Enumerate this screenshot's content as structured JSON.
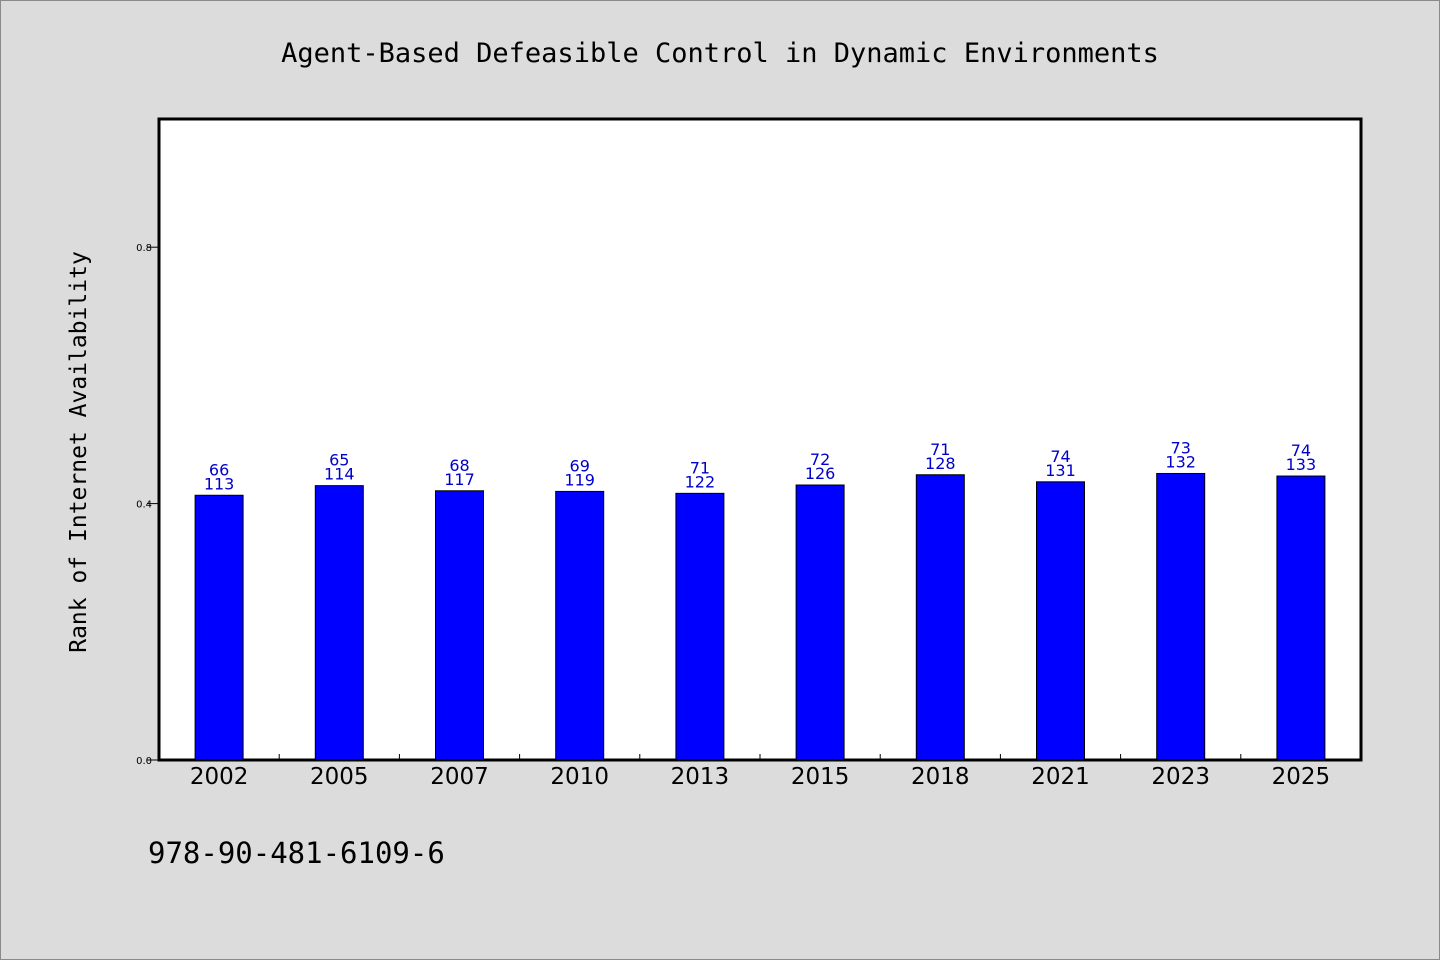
{
  "chart_data": {
    "type": "bar",
    "title": "Agent-Based Defeasible Control in Dynamic Environments",
    "xlabel": "",
    "ylabel": "Rank of Internet Availability",
    "categories": [
      "2002",
      "2005",
      "2007",
      "2010",
      "2013",
      "2015",
      "2018",
      "2021",
      "2023",
      "2025"
    ],
    "values": [
      0.413,
      0.428,
      0.42,
      0.419,
      0.416,
      0.429,
      0.445,
      0.434,
      0.447,
      0.443
    ],
    "bar_labels": {
      "top": [
        "66",
        "65",
        "68",
        "69",
        "71",
        "72",
        "71",
        "74",
        "73",
        "74"
      ],
      "bottom": [
        "113",
        "114",
        "117",
        "119",
        "122",
        "126",
        "128",
        "131",
        "132",
        "133"
      ]
    },
    "yticks": [
      "0.0",
      "0.4",
      "0.8"
    ],
    "ylim": [
      0,
      1.0
    ],
    "grid": false,
    "bar_color": "#0000ff",
    "label_color": "#0000cc"
  },
  "footer": {
    "isbn": "978-90-481-6109-6"
  }
}
